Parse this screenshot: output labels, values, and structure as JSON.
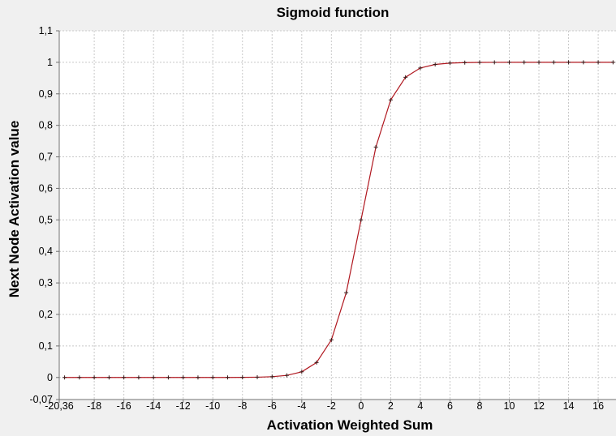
{
  "chart_data": {
    "type": "line",
    "title": "Sigmoid function",
    "xlabel": "Activation Weighted Sum",
    "ylabel": "Next Node Activation value",
    "xlim": [
      -20.36,
      17.2
    ],
    "ylim": [
      -0.07,
      1.1
    ],
    "x_ticks": [
      -20.36,
      -18,
      -16,
      -14,
      -12,
      -10,
      -8,
      -6,
      -4,
      -2,
      0,
      2,
      4,
      6,
      8,
      10,
      12,
      14,
      16
    ],
    "x_tick_labels": [
      "-20,36",
      "-18",
      "-16",
      "-14",
      "-12",
      "-10",
      "-8",
      "-6",
      "-4",
      "-2",
      "0",
      "2",
      "4",
      "6",
      "8",
      "10",
      "12",
      "14",
      "16"
    ],
    "y_ticks": [
      -0.07,
      0,
      0.1,
      0.2,
      0.3,
      0.4,
      0.5,
      0.6,
      0.7,
      0.8,
      0.9,
      1,
      1.1
    ],
    "y_tick_labels": [
      "-0,07",
      "0",
      "0,1",
      "0,2",
      "0,3",
      "0,4",
      "0,5",
      "0,6",
      "0,7",
      "0,8",
      "0,9",
      "1",
      "1,1"
    ],
    "grid": true,
    "line_color": "#b0171f",
    "marker_color": "#3a1818",
    "series": [
      {
        "x": [
          -20,
          -19,
          -18,
          -17,
          -16,
          -15,
          -14,
          -13,
          -12,
          -11,
          -10,
          -9,
          -8,
          -7,
          -6,
          -5,
          -4,
          -3,
          -2,
          -1,
          0,
          1,
          2,
          3,
          4,
          5,
          6,
          7,
          8,
          9,
          10,
          11,
          12,
          13,
          14,
          15,
          16,
          17
        ],
        "y": [
          0,
          0,
          0,
          0,
          0,
          0,
          0,
          0,
          1e-05,
          2e-05,
          5e-05,
          0.00012,
          0.00034,
          0.00091,
          0.00247,
          0.00669,
          0.01799,
          0.04743,
          0.1192,
          0.26894,
          0.5,
          0.73106,
          0.8808,
          0.95257,
          0.98201,
          0.99331,
          0.99753,
          0.99909,
          0.99966,
          0.99988,
          0.99995,
          0.99998,
          0.99999,
          1,
          1,
          1,
          1,
          1
        ]
      }
    ]
  }
}
